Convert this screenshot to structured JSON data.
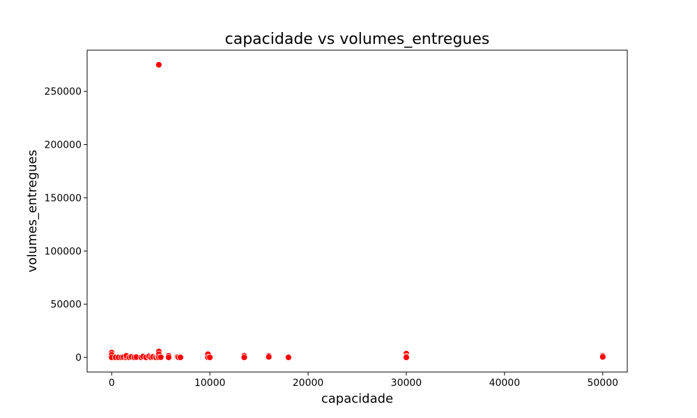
{
  "chart_data": {
    "type": "scatter",
    "title": "capacidade vs volumes_entregues",
    "xlabel": "capacidade",
    "ylabel": "volumes_entregues",
    "xlim": [
      -2500,
      52500
    ],
    "ylim": [
      -13750,
      288750
    ],
    "xticks": [
      0,
      10000,
      20000,
      30000,
      40000,
      50000
    ],
    "xtick_labels": [
      "0",
      "10000",
      "20000",
      "30000",
      "40000",
      "50000"
    ],
    "yticks": [
      0,
      50000,
      100000,
      150000,
      200000,
      250000
    ],
    "ytick_labels": [
      "0",
      "50000",
      "100000",
      "150000",
      "200000",
      "250000"
    ],
    "grid": false,
    "legend": "none",
    "color": "#ff0000",
    "series": [
      {
        "name": "volumes_entregues",
        "points": [
          {
            "x": 0,
            "y": 4500
          },
          {
            "x": 0,
            "y": 2500
          },
          {
            "x": 0,
            "y": 0
          },
          {
            "x": 400,
            "y": 0
          },
          {
            "x": 700,
            "y": 0
          },
          {
            "x": 1000,
            "y": 0
          },
          {
            "x": 1200,
            "y": 300
          },
          {
            "x": 1500,
            "y": 0
          },
          {
            "x": 1500,
            "y": 1500
          },
          {
            "x": 1800,
            "y": 0
          },
          {
            "x": 2000,
            "y": 500
          },
          {
            "x": 2300,
            "y": 0
          },
          {
            "x": 2500,
            "y": 300
          },
          {
            "x": 3000,
            "y": 0
          },
          {
            "x": 3200,
            "y": 800
          },
          {
            "x": 3500,
            "y": 0
          },
          {
            "x": 3800,
            "y": 1000
          },
          {
            "x": 4000,
            "y": 0
          },
          {
            "x": 4200,
            "y": 500
          },
          {
            "x": 4500,
            "y": 0
          },
          {
            "x": 4700,
            "y": 1200
          },
          {
            "x": 4800,
            "y": 275000
          },
          {
            "x": 4800,
            "y": 5500
          },
          {
            "x": 4800,
            "y": 3000
          },
          {
            "x": 4800,
            "y": 0
          },
          {
            "x": 5000,
            "y": 200
          },
          {
            "x": 5800,
            "y": 1500
          },
          {
            "x": 5800,
            "y": 0
          },
          {
            "x": 6700,
            "y": 500
          },
          {
            "x": 6800,
            "y": 0
          },
          {
            "x": 7000,
            "y": 0
          },
          {
            "x": 9800,
            "y": 3000
          },
          {
            "x": 9800,
            "y": 0
          },
          {
            "x": 10000,
            "y": 0
          },
          {
            "x": 13500,
            "y": 1500
          },
          {
            "x": 13500,
            "y": 0
          },
          {
            "x": 16000,
            "y": 1500
          },
          {
            "x": 16000,
            "y": 500
          },
          {
            "x": 18000,
            "y": 0
          },
          {
            "x": 30000,
            "y": 3500
          },
          {
            "x": 30000,
            "y": 1000
          },
          {
            "x": 30000,
            "y": 0
          },
          {
            "x": 50000,
            "y": 1500
          },
          {
            "x": 50000,
            "y": 500
          }
        ]
      }
    ]
  }
}
